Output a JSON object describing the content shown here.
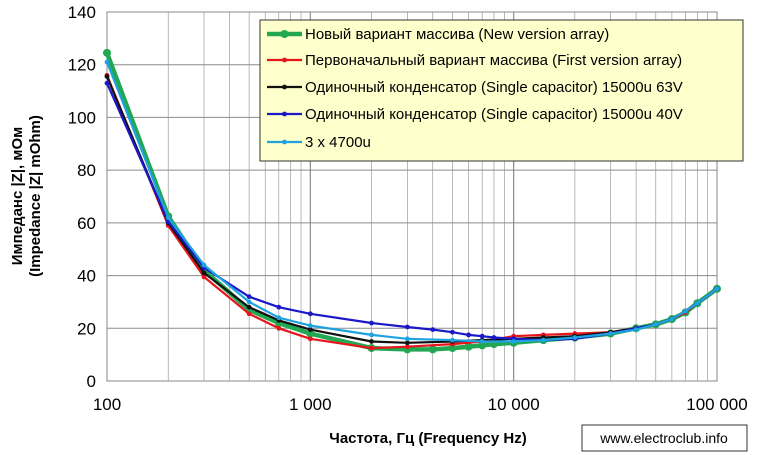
{
  "chart_data": {
    "type": "line",
    "x_scale": "log",
    "xlim": [
      100,
      100000
    ],
    "ylim": [
      0,
      140
    ],
    "x_ticks": [
      "100",
      "1 000",
      "10 000",
      "100 000"
    ],
    "y_ticks": [
      "0",
      "20",
      "40",
      "60",
      "80",
      "100",
      "120",
      "140"
    ],
    "xlabel": "Частота, Гц (Frequency Hz)",
    "ylabel_line1": "Импеданс |Z|, мОм",
    "ylabel_line2": "(Impedance |Z| mOhm)",
    "legend_position": "top-right",
    "grid": true,
    "series": [
      {
        "name": "Новый вариант массива (New version array)",
        "color": "#22a852",
        "x": [
          100,
          200,
          300,
          500,
          700,
          1000,
          2000,
          3000,
          4000,
          5000,
          6000,
          7000,
          8000,
          10000,
          14000,
          20000,
          30000,
          40000,
          50000,
          60000,
          70000,
          80000,
          100000
        ],
        "y": [
          124.5,
          62.5,
          42,
          27,
          22,
          18,
          12.5,
          12,
          12,
          12.5,
          13,
          13.5,
          14,
          14.5,
          15.5,
          16.5,
          18,
          20,
          21.5,
          23.5,
          26,
          29.5,
          35
        ]
      },
      {
        "name": "Первоначальный вариант массива (First version array)",
        "color": "#e8141c",
        "x": [
          100,
          200,
          300,
          500,
          700,
          1000,
          2000,
          3000,
          5000,
          7000,
          10000,
          14000,
          20000,
          30000,
          40000,
          50000,
          60000,
          70000,
          80000,
          100000
        ],
        "y": [
          116,
          59,
          39.5,
          25.5,
          20,
          16,
          12.5,
          13,
          14,
          15,
          17,
          17.5,
          18,
          18.5,
          20,
          21.5,
          23.5,
          26,
          29.5,
          35
        ]
      },
      {
        "name": "Одиночный конденсатор (Single capacitor) 15000u 63V",
        "color": "#111111",
        "x": [
          100,
          200,
          300,
          500,
          700,
          1000,
          2000,
          3000,
          5000,
          7000,
          10000,
          14000,
          20000,
          30000,
          40000,
          50000,
          60000,
          70000,
          80000,
          100000
        ],
        "y": [
          115.5,
          60,
          41,
          28,
          23,
          19.5,
          15,
          14.5,
          15,
          15.5,
          16,
          16.5,
          17,
          18.5,
          20,
          21.5,
          23.5,
          26.5,
          29.5,
          35
        ]
      },
      {
        "name": "Одиночный конденсатор (Single capacitor) 15000u 40V",
        "color": "#1a18c8",
        "x": [
          100,
          200,
          300,
          500,
          700,
          1000,
          2000,
          3000,
          4000,
          5000,
          6000,
          7000,
          8000,
          10000,
          14000,
          20000,
          30000,
          40000,
          50000,
          60000,
          70000,
          80000,
          100000
        ],
        "y": [
          113,
          60.5,
          43,
          32,
          28,
          25.5,
          22,
          20.5,
          19.5,
          18.5,
          17.5,
          17,
          16.5,
          16,
          15.5,
          16,
          18,
          20,
          21.5,
          23.5,
          26.5,
          29.5,
          35
        ]
      },
      {
        "name": "3 x 4700u",
        "color": "#1fa3e0",
        "x": [
          100,
          200,
          300,
          500,
          700,
          1000,
          2000,
          3000,
          5000,
          7000,
          10000,
          14000,
          20000,
          30000,
          40000,
          50000,
          60000,
          70000,
          80000,
          100000
        ],
        "y": [
          121,
          62,
          44,
          30,
          24,
          21,
          17.5,
          16,
          15.5,
          15,
          15,
          15.5,
          16.5,
          18,
          19.5,
          21.5,
          23.5,
          26.5,
          29.5,
          35
        ]
      }
    ]
  },
  "watermark": "www.electroclub.info"
}
